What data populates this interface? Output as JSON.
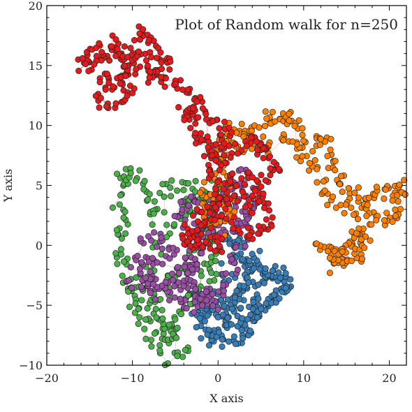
{
  "chart_data": {
    "type": "scatter",
    "title": "Plot of Random walk for n=250",
    "xlabel": "X axis",
    "ylabel": "Y axis",
    "xlim": [
      -20,
      22
    ],
    "ylim": [
      -10,
      20
    ],
    "x_ticks": [
      -20,
      -10,
      0,
      10,
      20
    ],
    "x_tick_labels": [
      "−20",
      "−10",
      "0",
      "10",
      "20"
    ],
    "y_ticks": [
      -10,
      -5,
      0,
      5,
      10,
      15,
      20
    ],
    "y_tick_labels": [
      "−10",
      "−5",
      "0",
      "5",
      "10",
      "15",
      "20"
    ],
    "grid": false,
    "legend": "none",
    "series": [
      {
        "color": "#377eb8",
        "anchors": [
          [
            0,
            0
          ],
          [
            1,
            1
          ],
          [
            2,
            0
          ],
          [
            3,
            -2
          ],
          [
            5,
            -1
          ],
          [
            6,
            -3
          ],
          [
            7,
            -2
          ],
          [
            8,
            -4
          ],
          [
            6,
            -5
          ],
          [
            4,
            -6
          ],
          [
            3,
            -8
          ],
          [
            1,
            -8
          ],
          [
            -1,
            -7
          ],
          [
            -2,
            -6
          ],
          [
            0,
            -5
          ],
          [
            2,
            -5
          ],
          [
            4,
            -4
          ],
          [
            5,
            -6
          ],
          [
            3,
            -7
          ],
          [
            1,
            -6
          ],
          [
            2,
            -4
          ],
          [
            3,
            -3
          ],
          [
            4,
            -1
          ],
          [
            2,
            0
          ],
          [
            1,
            -2
          ],
          [
            0,
            -4
          ],
          [
            -1,
            -5
          ],
          [
            -3,
            -4
          ],
          [
            -2,
            -6
          ],
          [
            -1,
            -8
          ],
          [
            1,
            -7
          ],
          [
            3,
            -6
          ],
          [
            5,
            -5
          ],
          [
            7,
            -4
          ],
          [
            8,
            -3
          ],
          [
            6,
            -2
          ],
          [
            4,
            -3
          ],
          [
            2,
            -5
          ],
          [
            0,
            -6
          ]
        ]
      },
      {
        "color": "#4daf4a",
        "anchors": [
          [
            -1,
            0
          ],
          [
            -2,
            -2
          ],
          [
            -3,
            -4
          ],
          [
            -5,
            -6
          ],
          [
            -6,
            -8
          ],
          [
            -7,
            -7
          ],
          [
            -8,
            -5
          ],
          [
            -10,
            -4
          ],
          [
            -11,
            -2
          ],
          [
            -12,
            0
          ],
          [
            -11,
            2
          ],
          [
            -12,
            4
          ],
          [
            -11,
            6
          ],
          [
            -9,
            6
          ],
          [
            -8,
            4
          ],
          [
            -7,
            2
          ],
          [
            -6,
            5
          ],
          [
            -4,
            5
          ],
          [
            -3,
            3
          ],
          [
            -2,
            5
          ],
          [
            -1,
            2
          ],
          [
            -2,
            0
          ],
          [
            -4,
            -2
          ],
          [
            -6,
            -3
          ],
          [
            -7,
            -5
          ],
          [
            -5,
            -7
          ],
          [
            -4,
            -9
          ],
          [
            -6,
            -10
          ],
          [
            -8,
            -8
          ],
          [
            -9,
            -6
          ],
          [
            -10,
            -4
          ],
          [
            -8,
            -2
          ],
          [
            -6,
            1
          ],
          [
            -4,
            3
          ],
          [
            -2,
            4
          ],
          [
            0,
            5
          ],
          [
            -1,
            2
          ],
          [
            0,
            -1
          ],
          [
            -1,
            -3
          ]
        ]
      },
      {
        "color": "#984ea3",
        "anchors": [
          [
            0,
            -5
          ],
          [
            -2,
            -4
          ],
          [
            -4,
            -5
          ],
          [
            -6,
            -3
          ],
          [
            -8,
            -4
          ],
          [
            -10,
            -3
          ],
          [
            -9,
            -1
          ],
          [
            -8,
            1
          ],
          [
            -6,
            0
          ],
          [
            -4,
            -1
          ],
          [
            -3,
            1
          ],
          [
            -5,
            3
          ],
          [
            -3,
            4
          ],
          [
            -1,
            3
          ],
          [
            0,
            4
          ],
          [
            2,
            5
          ],
          [
            3,
            6
          ],
          [
            4,
            4
          ],
          [
            3,
            2
          ],
          [
            1,
            1
          ],
          [
            -1,
            2
          ],
          [
            -3,
            -1
          ],
          [
            -4,
            -3
          ],
          [
            -6,
            -4
          ],
          [
            -8,
            -3
          ],
          [
            -9,
            -2
          ],
          [
            -7,
            -1
          ],
          [
            -5,
            -2
          ],
          [
            -3,
            -3
          ],
          [
            -2,
            -5
          ],
          [
            -1,
            -4
          ],
          [
            1,
            -3
          ],
          [
            2,
            -1
          ],
          [
            3,
            1
          ],
          [
            4,
            3
          ],
          [
            2,
            4
          ],
          [
            0,
            3
          ],
          [
            -2,
            1
          ],
          [
            -3,
            -2
          ]
        ]
      },
      {
        "color": "#ff7f00",
        "anchors": [
          [
            -1,
            3
          ],
          [
            0,
            6
          ],
          [
            1,
            9
          ],
          [
            2,
            10
          ],
          [
            4,
            9
          ],
          [
            6,
            11
          ],
          [
            7,
            10
          ],
          [
            8,
            11
          ],
          [
            9,
            10
          ],
          [
            10,
            8
          ],
          [
            12,
            9
          ],
          [
            13,
            8
          ],
          [
            14,
            6
          ],
          [
            15,
            5
          ],
          [
            16,
            4
          ],
          [
            17,
            3
          ],
          [
            18,
            4
          ],
          [
            20,
            5
          ],
          [
            21,
            4
          ],
          [
            22,
            5
          ],
          [
            21,
            3
          ],
          [
            20,
            2
          ],
          [
            18,
            3
          ],
          [
            17,
            1
          ],
          [
            16,
            0
          ],
          [
            15,
            -1
          ],
          [
            14,
            -2
          ],
          [
            13,
            -1
          ],
          [
            12,
            0
          ],
          [
            14,
            0
          ],
          [
            16,
            -1
          ],
          [
            17,
            0
          ],
          [
            16,
            1
          ],
          [
            15,
            3
          ],
          [
            13,
            4
          ],
          [
            12,
            6
          ],
          [
            10,
            7
          ],
          [
            8,
            9
          ],
          [
            6,
            8
          ],
          [
            4,
            9
          ],
          [
            3,
            8
          ],
          [
            2,
            9
          ],
          [
            0,
            8
          ],
          [
            1,
            6
          ],
          [
            -1,
            5
          ],
          [
            -2,
            3
          ],
          [
            0,
            1
          ],
          [
            1,
            3
          ],
          [
            2,
            5
          ]
        ]
      },
      {
        "color": "#e41a1c",
        "anchors": [
          [
            0,
            0
          ],
          [
            -2,
            0
          ],
          [
            -3,
            1
          ],
          [
            -1,
            2
          ],
          [
            0,
            4
          ],
          [
            2,
            5
          ],
          [
            3,
            4
          ],
          [
            4,
            3
          ],
          [
            5,
            5
          ],
          [
            7,
            6
          ],
          [
            6,
            7
          ],
          [
            5,
            8
          ],
          [
            4,
            9
          ],
          [
            2,
            8
          ],
          [
            0,
            7
          ],
          [
            -1,
            8
          ],
          [
            -2,
            9
          ],
          [
            -3,
            10
          ],
          [
            -4,
            11
          ],
          [
            -3,
            12
          ],
          [
            -2,
            11
          ],
          [
            0,
            10
          ],
          [
            1,
            9
          ],
          [
            0,
            8
          ],
          [
            -1,
            6
          ],
          [
            1,
            5
          ],
          [
            3,
            6
          ],
          [
            5,
            4
          ],
          [
            6,
            2
          ],
          [
            5,
            1
          ],
          [
            3,
            1
          ],
          [
            1,
            2
          ],
          [
            0,
            4
          ],
          [
            -1,
            3
          ],
          [
            -3,
            2
          ],
          [
            -4,
            0
          ],
          [
            -2,
            0
          ],
          [
            0,
            1
          ],
          [
            -2,
            12
          ],
          [
            -4,
            13
          ],
          [
            -6,
            14
          ],
          [
            -8,
            15
          ],
          [
            -9,
            16
          ],
          [
            -10,
            15
          ],
          [
            -11,
            14
          ],
          [
            -12,
            13
          ],
          [
            -13,
            14
          ],
          [
            -14,
            12
          ],
          [
            -12,
            12
          ],
          [
            -10,
            13
          ],
          [
            -11,
            15
          ],
          [
            -12,
            16
          ],
          [
            -13,
            16
          ],
          [
            -15,
            15
          ],
          [
            -16,
            15
          ],
          [
            -14,
            16
          ],
          [
            -12,
            17
          ],
          [
            -10,
            16
          ],
          [
            -9,
            18
          ],
          [
            -8,
            17
          ],
          [
            -7,
            16
          ],
          [
            -6,
            15
          ],
          [
            -7,
            14
          ],
          [
            -8,
            14
          ]
        ]
      }
    ]
  }
}
